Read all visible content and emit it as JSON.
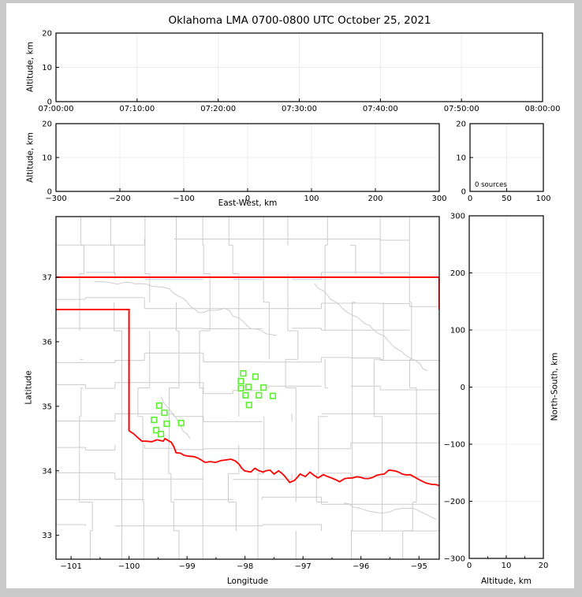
{
  "title": "Oklahoma LMA 0700-0800 UTC October 25, 2021",
  "colors": {
    "background": "#ffffff",
    "frame_border": "#c9c9c9",
    "axis": "#000000",
    "grid_line": "#ececec",
    "county_line": "#cccccc",
    "state_border": "#ff0000",
    "source_marker": "#5df032"
  },
  "chart_data": {
    "type": "scatter",
    "title": "Oklahoma LMA 0700-0800 UTC October 25, 2021",
    "total_sources_label": "0 sources",
    "panels": {
      "time_height": {
        "ylabel": "Altitude, km",
        "xticks": [
          "07:00:00",
          "07:10:00",
          "07:20:00",
          "07:30:00",
          "07:40:00",
          "07:50:00",
          "08:00:00"
        ],
        "yticks": [
          0,
          10,
          20
        ],
        "ylim": [
          0,
          20
        ],
        "points": []
      },
      "ew_height": {
        "xlabel": "East-West, km",
        "ylabel": "Altitude, km",
        "xticks": [
          -300,
          -200,
          -100,
          0,
          100,
          200,
          300
        ],
        "yticks": [
          0,
          10,
          20
        ],
        "xlim": [
          -300,
          300
        ],
        "ylim": [
          0,
          20
        ],
        "points": []
      },
      "alt_histogram": {
        "annotation": "0 sources",
        "xticks": [
          0,
          50,
          100
        ],
        "yticks": [
          0,
          10,
          20
        ],
        "xlim": [
          0,
          100
        ],
        "ylim": [
          0,
          20
        ],
        "points": []
      },
      "plan_view": {
        "xlabel": "Longitude",
        "ylabel": "Latitude",
        "xticks": [
          -101,
          -100,
          -99,
          -98,
          -97,
          -96,
          -95
        ],
        "xminor_step": 0.5,
        "yticks": [
          33,
          34,
          35,
          36,
          37
        ],
        "xlim": [
          -101.26,
          -94.65
        ],
        "ylim": [
          32.63,
          37.94
        ],
        "sources": [
          [
            -98.03,
            35.51
          ],
          [
            -97.82,
            35.46
          ],
          [
            -98.07,
            35.39
          ],
          [
            -98.07,
            35.28
          ],
          [
            -97.94,
            35.3
          ],
          [
            -97.99,
            35.17
          ],
          [
            -97.76,
            35.17
          ],
          [
            -97.68,
            35.29
          ],
          [
            -97.52,
            35.16
          ],
          [
            -97.93,
            35.02
          ],
          [
            -99.48,
            35.01
          ],
          [
            -99.39,
            34.9
          ],
          [
            -99.57,
            34.79
          ],
          [
            -99.35,
            34.73
          ],
          [
            -99.1,
            34.74
          ],
          [
            -99.53,
            34.63
          ],
          [
            -99.45,
            34.57
          ]
        ],
        "state_border_paths": {
          "kansas_line_37n": [
            [
              -101.26,
              37.0
            ],
            [
              -94.6,
              37.0
            ]
          ],
          "panhandle_36_5n_100w": [
            [
              -101.26,
              36.5
            ],
            [
              -100.0,
              36.5
            ],
            [
              -100.0,
              34.62
            ]
          ],
          "east_border": [
            [
              -94.65,
              37.0
            ],
            [
              -94.65,
              36.5
            ]
          ],
          "red_river": [
            [
              -100.0,
              34.62
            ],
            [
              -99.78,
              34.46
            ],
            [
              -99.61,
              34.45
            ],
            [
              -99.52,
              34.48
            ],
            [
              -99.41,
              34.46
            ],
            [
              -99.38,
              34.5
            ],
            [
              -99.27,
              34.44
            ],
            [
              -99.19,
              34.28
            ],
            [
              -99.05,
              34.24
            ],
            [
              -98.89,
              34.22
            ],
            [
              -98.69,
              34.13
            ],
            [
              -98.51,
              34.13
            ],
            [
              -98.41,
              34.16
            ],
            [
              -98.24,
              34.18
            ],
            [
              -98.1,
              34.1
            ],
            [
              -98.01,
              34.0
            ],
            [
              -97.9,
              33.98
            ],
            [
              -97.83,
              34.04
            ],
            [
              -97.69,
              33.98
            ],
            [
              -97.57,
              34.01
            ],
            [
              -97.5,
              33.95
            ],
            [
              -97.42,
              34.0
            ],
            [
              -97.3,
              33.9
            ],
            [
              -97.23,
              33.82
            ],
            [
              -97.15,
              33.85
            ],
            [
              -97.05,
              33.95
            ],
            [
              -96.96,
              33.91
            ],
            [
              -96.88,
              33.98
            ],
            [
              -96.74,
              33.89
            ],
            [
              -96.65,
              33.94
            ],
            [
              -96.51,
              33.89
            ],
            [
              -96.37,
              33.83
            ],
            [
              -96.28,
              33.88
            ],
            [
              -96.14,
              33.89
            ],
            [
              -96.01,
              33.9
            ],
            [
              -95.87,
              33.88
            ],
            [
              -95.73,
              33.93
            ],
            [
              -95.6,
              33.95
            ],
            [
              -95.52,
              34.01
            ],
            [
              -95.42,
              34.0
            ],
            [
              -95.29,
              33.95
            ],
            [
              -95.15,
              33.94
            ],
            [
              -95.05,
              33.89
            ],
            [
              -94.97,
              33.85
            ],
            [
              -94.88,
              33.81
            ],
            [
              -94.78,
              33.79
            ],
            [
              -94.63,
              33.76
            ]
          ]
        },
        "rivers": [
          [
            [
              -100.6,
              36.93
            ],
            [
              -99.9,
              36.9
            ],
            [
              -99.3,
              36.82
            ],
            [
              -98.8,
              36.45
            ],
            [
              -98.35,
              36.52
            ],
            [
              -97.9,
              36.2
            ],
            [
              -97.45,
              36.1
            ]
          ],
          [
            [
              -96.8,
              36.9
            ],
            [
              -96.3,
              36.5
            ],
            [
              -95.85,
              36.25
            ],
            [
              -95.3,
              35.85
            ],
            [
              -94.85,
              35.55
            ]
          ],
          [
            [
              -99.45,
              35.15
            ],
            [
              -99.3,
              34.95
            ],
            [
              -99.15,
              34.75
            ],
            [
              -98.95,
              34.5
            ]
          ],
          [
            [
              -96.3,
              33.5
            ],
            [
              -95.7,
              33.35
            ],
            [
              -95.1,
              33.42
            ],
            [
              -94.7,
              33.25
            ]
          ]
        ]
      },
      "ns_height": {
        "xlabel": "Altitude, km",
        "ylabel": "North-South, km",
        "xticks": [
          0,
          10,
          20
        ],
        "xminor": [
          5,
          15
        ],
        "yticks": [
          -300,
          -200,
          -100,
          0,
          100,
          200,
          300
        ],
        "xlim": [
          0,
          20
        ],
        "ylim": [
          -300,
          300
        ],
        "points": []
      }
    }
  }
}
